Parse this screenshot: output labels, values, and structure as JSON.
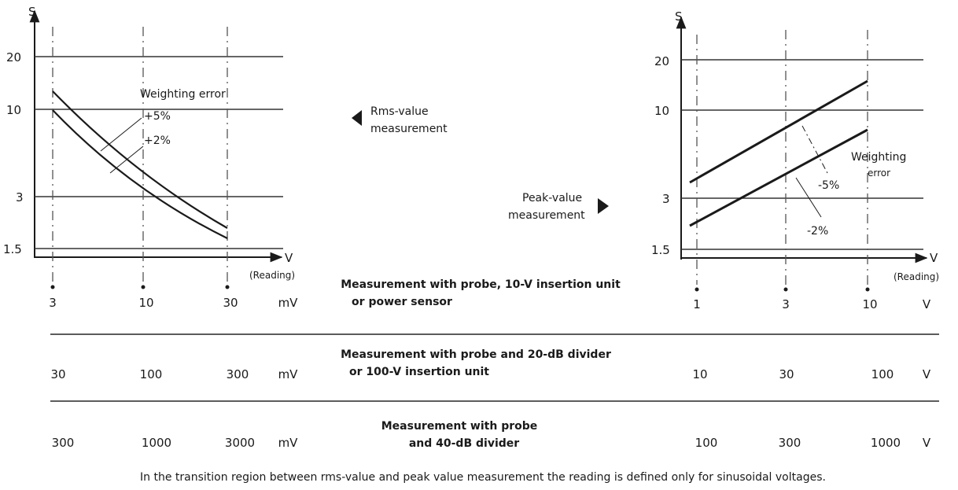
{
  "charts": {
    "left": {
      "y_axis_label": "S",
      "x_axis_label": "V",
      "x_axis_sublabel": "(Reading)",
      "y_ticks": [
        "20",
        "10",
        "3",
        "1.5"
      ],
      "curve_label_title": "Weighting error",
      "curve_labels": [
        "+5%",
        "+2%"
      ]
    },
    "right": {
      "y_axis_label": "S",
      "x_axis_label": "V",
      "x_axis_sublabel": "(Reading)",
      "y_ticks": [
        "20",
        "10",
        "3",
        "1.5"
      ],
      "curve_label_title_1": "Weighting",
      "curve_label_title_2": "error",
      "curve_labels": [
        "-5%",
        "-2%"
      ]
    }
  },
  "chart_data": [
    {
      "type": "line",
      "title": "",
      "xlabel": "V (Reading)",
      "ylabel": "S",
      "x_scale": "log",
      "y_scale": "log",
      "xlim": [
        3,
        30
      ],
      "ylim": [
        1.5,
        20
      ],
      "x_unit": "mV",
      "series": [
        {
          "name": "+5%",
          "x": [
            3,
            10,
            30
          ],
          "y": [
            12.5,
            4.2,
            1.75
          ]
        },
        {
          "name": "+2%",
          "x": [
            3,
            10,
            30
          ],
          "y": [
            9.5,
            3.1,
            1.45
          ]
        }
      ]
    },
    {
      "type": "line",
      "title": "",
      "xlabel": "V (Reading)",
      "ylabel": "S",
      "x_scale": "log",
      "y_scale": "log",
      "xlim": [
        1,
        10
      ],
      "ylim": [
        1.5,
        20
      ],
      "x_unit": "V",
      "series": [
        {
          "name": "-5%",
          "x": [
            1,
            10
          ],
          "y": [
            4,
            15
          ]
        },
        {
          "name": "-2%",
          "x": [
            1,
            10
          ],
          "y": [
            2,
            7.5
          ]
        }
      ]
    }
  ],
  "annotations": {
    "rms": [
      "Rms-value",
      "measurement"
    ],
    "peak": [
      "Peak-value",
      "measurement"
    ]
  },
  "rows": [
    {
      "left": [
        "3",
        "10",
        "30",
        "mV"
      ],
      "desc": [
        "Measurement with probe, 10-V insertion unit",
        "or power sensor"
      ],
      "right": [
        "1",
        "3",
        "10",
        "V"
      ]
    },
    {
      "left": [
        "30",
        "100",
        "300",
        "mV"
      ],
      "desc": [
        "Measurement with probe and 20-dB divider",
        "or 100-V insertion unit"
      ],
      "right": [
        "10",
        "30",
        "100",
        "V"
      ]
    },
    {
      "left": [
        "300",
        "1000",
        "3000",
        "mV"
      ],
      "desc": [
        "Measurement with probe",
        "and 40-dB divider"
      ],
      "right": [
        "100",
        "300",
        "1000",
        "V"
      ]
    }
  ],
  "footnote": "In the transition region between rms-value and peak value measurement the reading is defined only for sinusoidal voltages."
}
